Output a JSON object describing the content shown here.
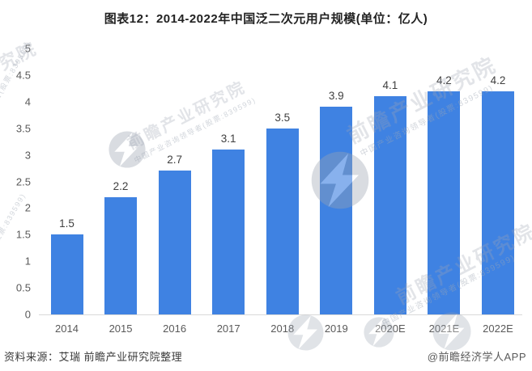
{
  "chart_data": {
    "type": "bar",
    "title": "图表12：2014-2022年中国泛二次元用户规模(单位：亿人)",
    "unit": "亿人",
    "categories": [
      "2014",
      "2015",
      "2016",
      "2017",
      "2018",
      "2019",
      "2020E",
      "2021E",
      "2022E"
    ],
    "values": [
      1.5,
      2.2,
      2.7,
      3.1,
      3.5,
      3.9,
      4.1,
      4.2,
      4.2
    ],
    "xlabel": "",
    "ylabel": "",
    "ylim": [
      0,
      5
    ],
    "yticks": [
      "0",
      "0.5",
      "1",
      "1.5",
      "2",
      "2.5",
      "3",
      "3.5",
      "4",
      "4.5",
      "5"
    ],
    "grid": false,
    "legend": false,
    "bar_color": "#3f82e2",
    "value_labels": true,
    "axis_line_color": "#d9d9d9",
    "tick_label_color": "#595959",
    "value_label_color": "#404040"
  },
  "footer": {
    "source": "资料来源：艾瑞 前瞻产业研究院整理",
    "credit": "@前瞻经济学人APP"
  },
  "watermark": {
    "brand": "前瞻产业研究院",
    "tagline": "中国产业咨询领导者(股票:839599)"
  }
}
